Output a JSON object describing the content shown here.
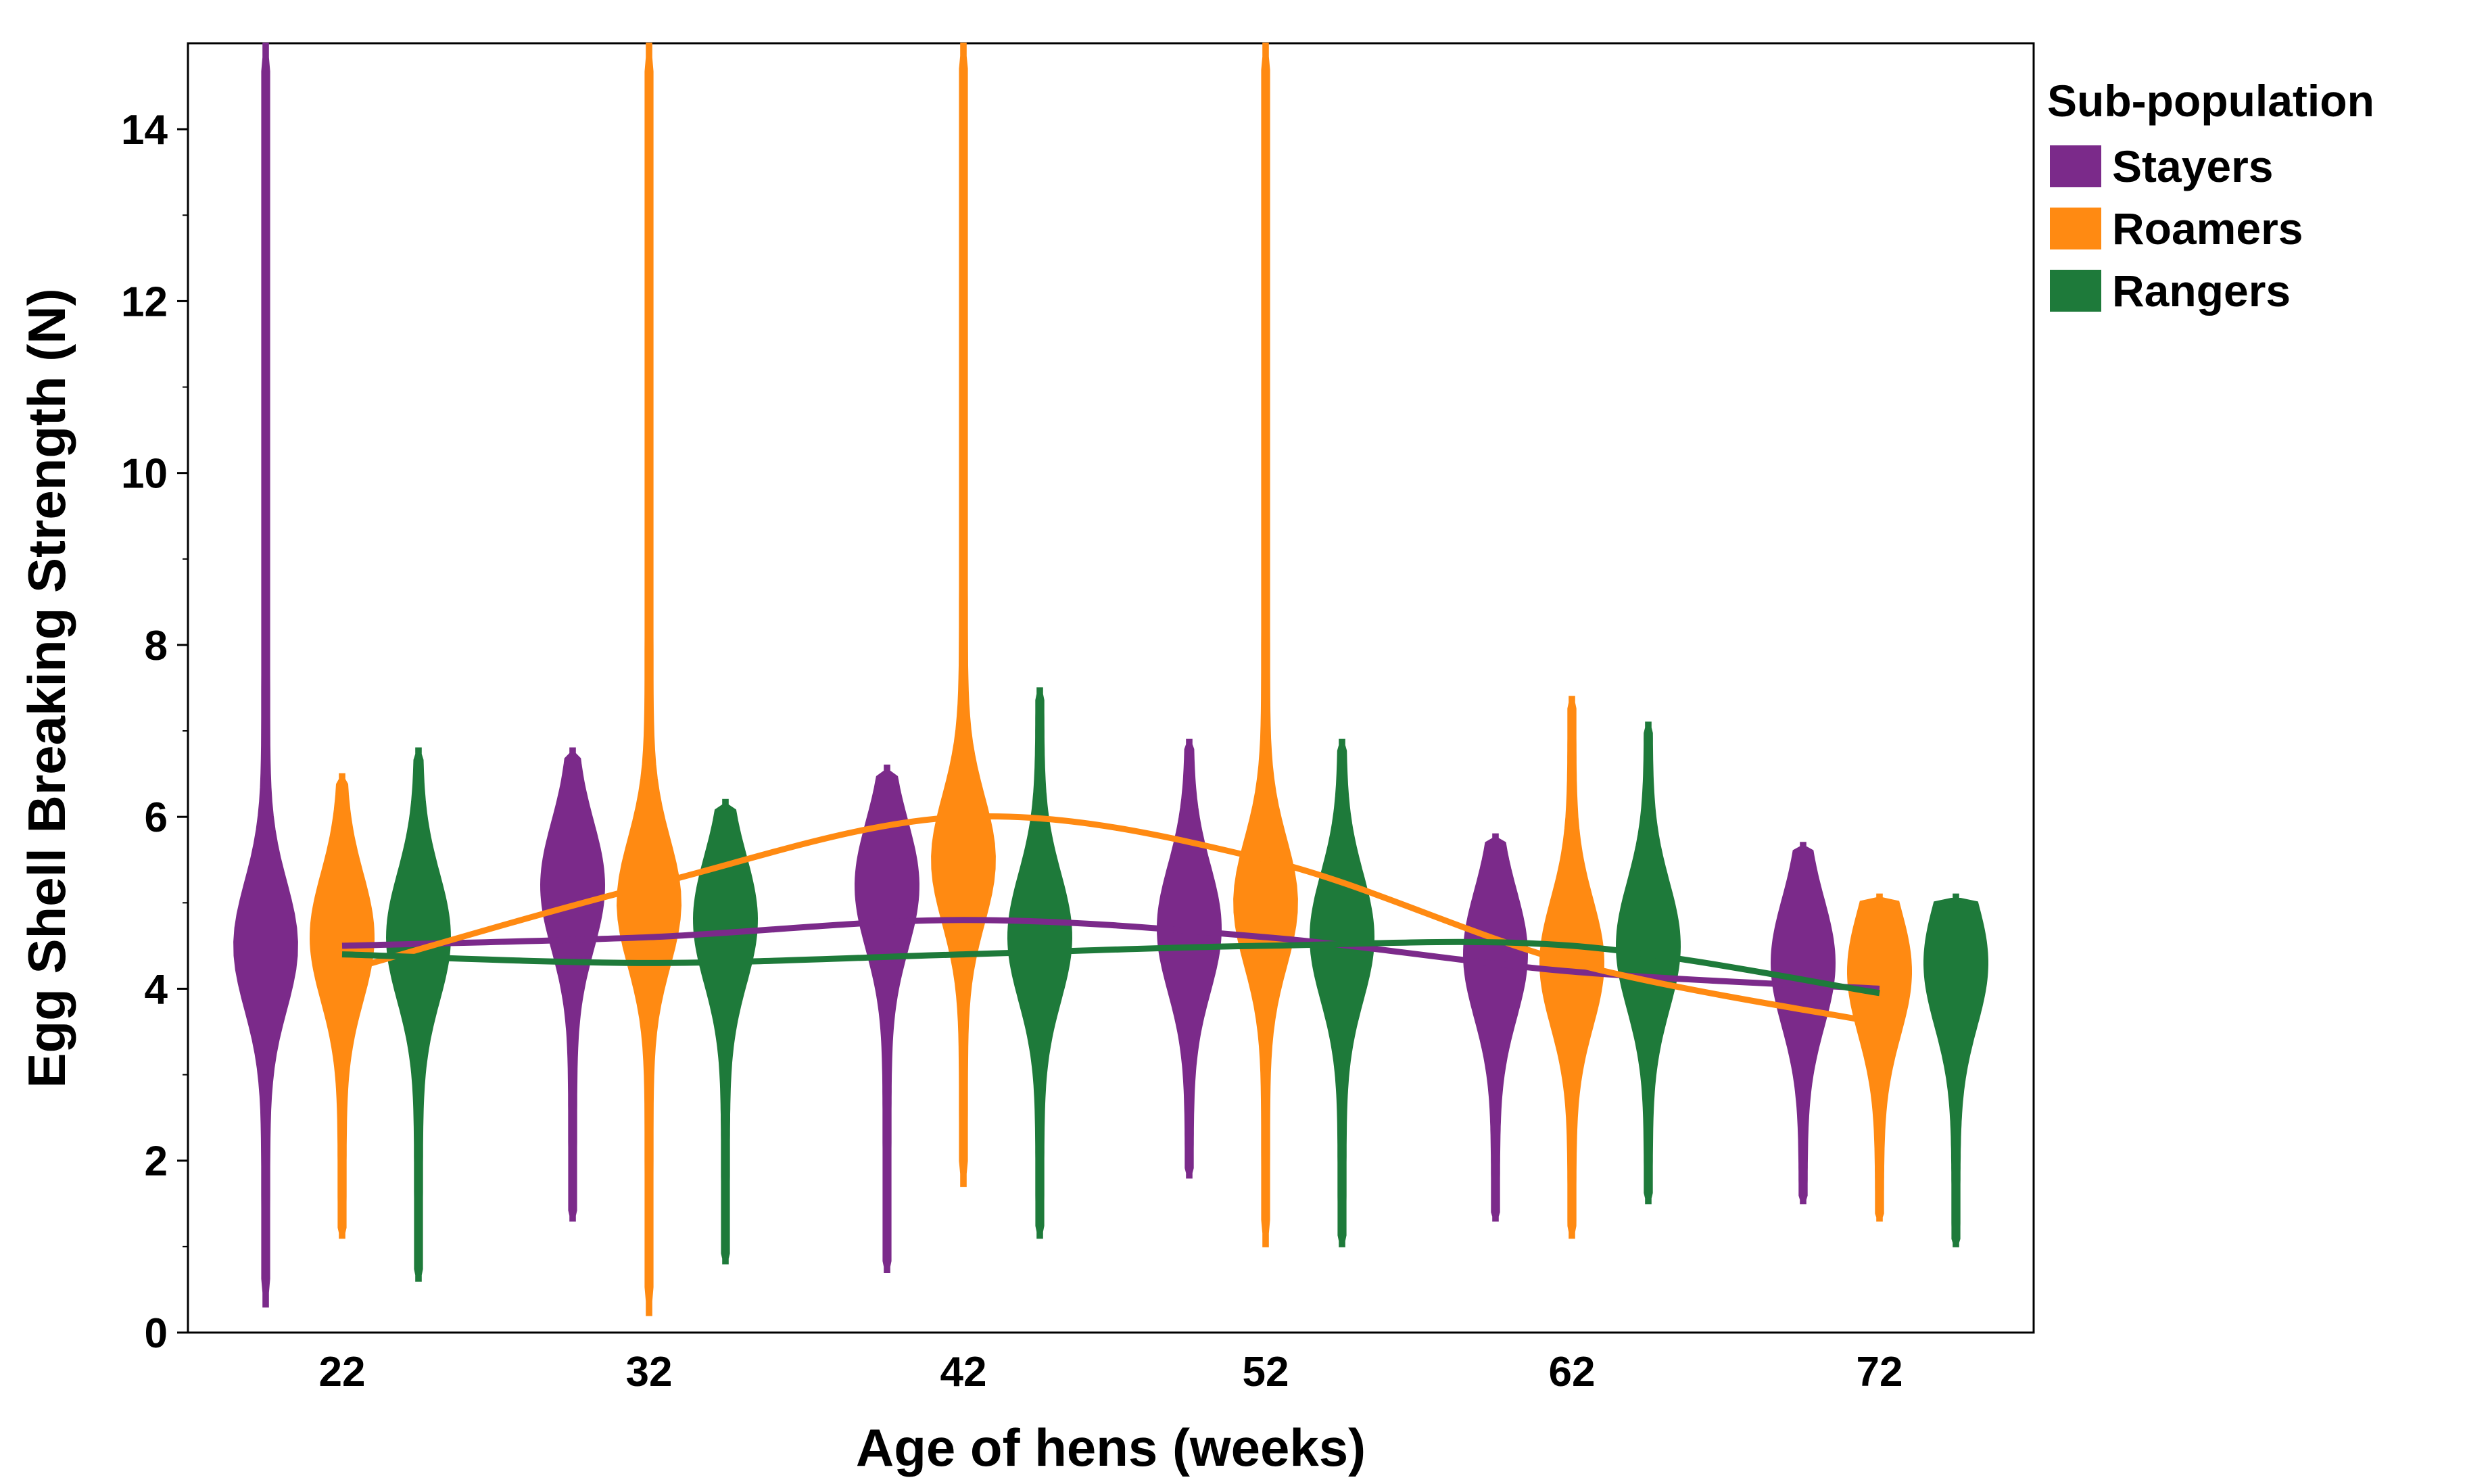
{
  "chart_data": {
    "type": "violin",
    "xlabel": "Age of hens (weeks)",
    "ylabel": "Egg Shell Breaking Strength (N)",
    "ylim": [
      0,
      15
    ],
    "yticks": [
      0,
      2,
      4,
      6,
      8,
      10,
      12,
      14
    ],
    "categories": [
      "22",
      "32",
      "42",
      "52",
      "62",
      "72"
    ],
    "grid": false,
    "legend": {
      "title": "Sub-population",
      "placement": "right"
    },
    "series": [
      {
        "name": "Stayers",
        "color": "#7B2A8A",
        "violins": [
          {
            "age": 22,
            "min": 0.3,
            "max": 15.0,
            "median": 4.5
          },
          {
            "age": 32,
            "min": 1.3,
            "max": 6.8,
            "median": 5.2
          },
          {
            "age": 42,
            "min": 0.7,
            "max": 6.6,
            "median": 5.2
          },
          {
            "age": 52,
            "min": 1.8,
            "max": 6.9,
            "median": 4.7
          },
          {
            "age": 62,
            "min": 1.3,
            "max": 5.8,
            "median": 4.4
          },
          {
            "age": 72,
            "min": 1.5,
            "max": 5.7,
            "median": 4.3
          }
        ],
        "trend": [
          {
            "x": 22,
            "y": 4.5
          },
          {
            "x": 32,
            "y": 4.6
          },
          {
            "x": 42,
            "y": 4.8
          },
          {
            "x": 52,
            "y": 4.6
          },
          {
            "x": 62,
            "y": 4.2
          },
          {
            "x": 72,
            "y": 4.0
          }
        ]
      },
      {
        "name": "Roamers",
        "color": "#FF8A12",
        "violins": [
          {
            "age": 22,
            "min": 1.1,
            "max": 6.5,
            "median": 4.6
          },
          {
            "age": 32,
            "min": 0.2,
            "max": 15.0,
            "median": 5.0
          },
          {
            "age": 42,
            "min": 1.7,
            "max": 15.0,
            "median": 5.5
          },
          {
            "age": 52,
            "min": 1.0,
            "max": 15.0,
            "median": 5.0
          },
          {
            "age": 62,
            "min": 1.1,
            "max": 7.4,
            "median": 4.3
          },
          {
            "age": 72,
            "min": 1.3,
            "max": 5.1,
            "median": 4.2
          }
        ],
        "trend": [
          {
            "x": 22,
            "y": 4.2
          },
          {
            "x": 32,
            "y": 5.2
          },
          {
            "x": 42,
            "y": 6.0
          },
          {
            "x": 52,
            "y": 5.5
          },
          {
            "x": 62,
            "y": 4.3
          },
          {
            "x": 72,
            "y": 3.6
          }
        ]
      },
      {
        "name": "Rangers",
        "color": "#1E7A3A",
        "violins": [
          {
            "age": 22,
            "min": 0.6,
            "max": 6.8,
            "median": 4.6
          },
          {
            "age": 32,
            "min": 0.8,
            "max": 6.2,
            "median": 4.8
          },
          {
            "age": 42,
            "min": 1.1,
            "max": 7.5,
            "median": 4.6
          },
          {
            "age": 52,
            "min": 1.0,
            "max": 6.9,
            "median": 4.6
          },
          {
            "age": 62,
            "min": 1.5,
            "max": 7.1,
            "median": 4.5
          },
          {
            "age": 72,
            "min": 1.0,
            "max": 5.1,
            "median": 4.3
          }
        ],
        "trend": [
          {
            "x": 22,
            "y": 4.4
          },
          {
            "x": 32,
            "y": 4.3
          },
          {
            "x": 42,
            "y": 4.4
          },
          {
            "x": 52,
            "y": 4.5
          },
          {
            "x": 62,
            "y": 4.5
          },
          {
            "x": 72,
            "y": 3.95
          }
        ]
      }
    ]
  }
}
